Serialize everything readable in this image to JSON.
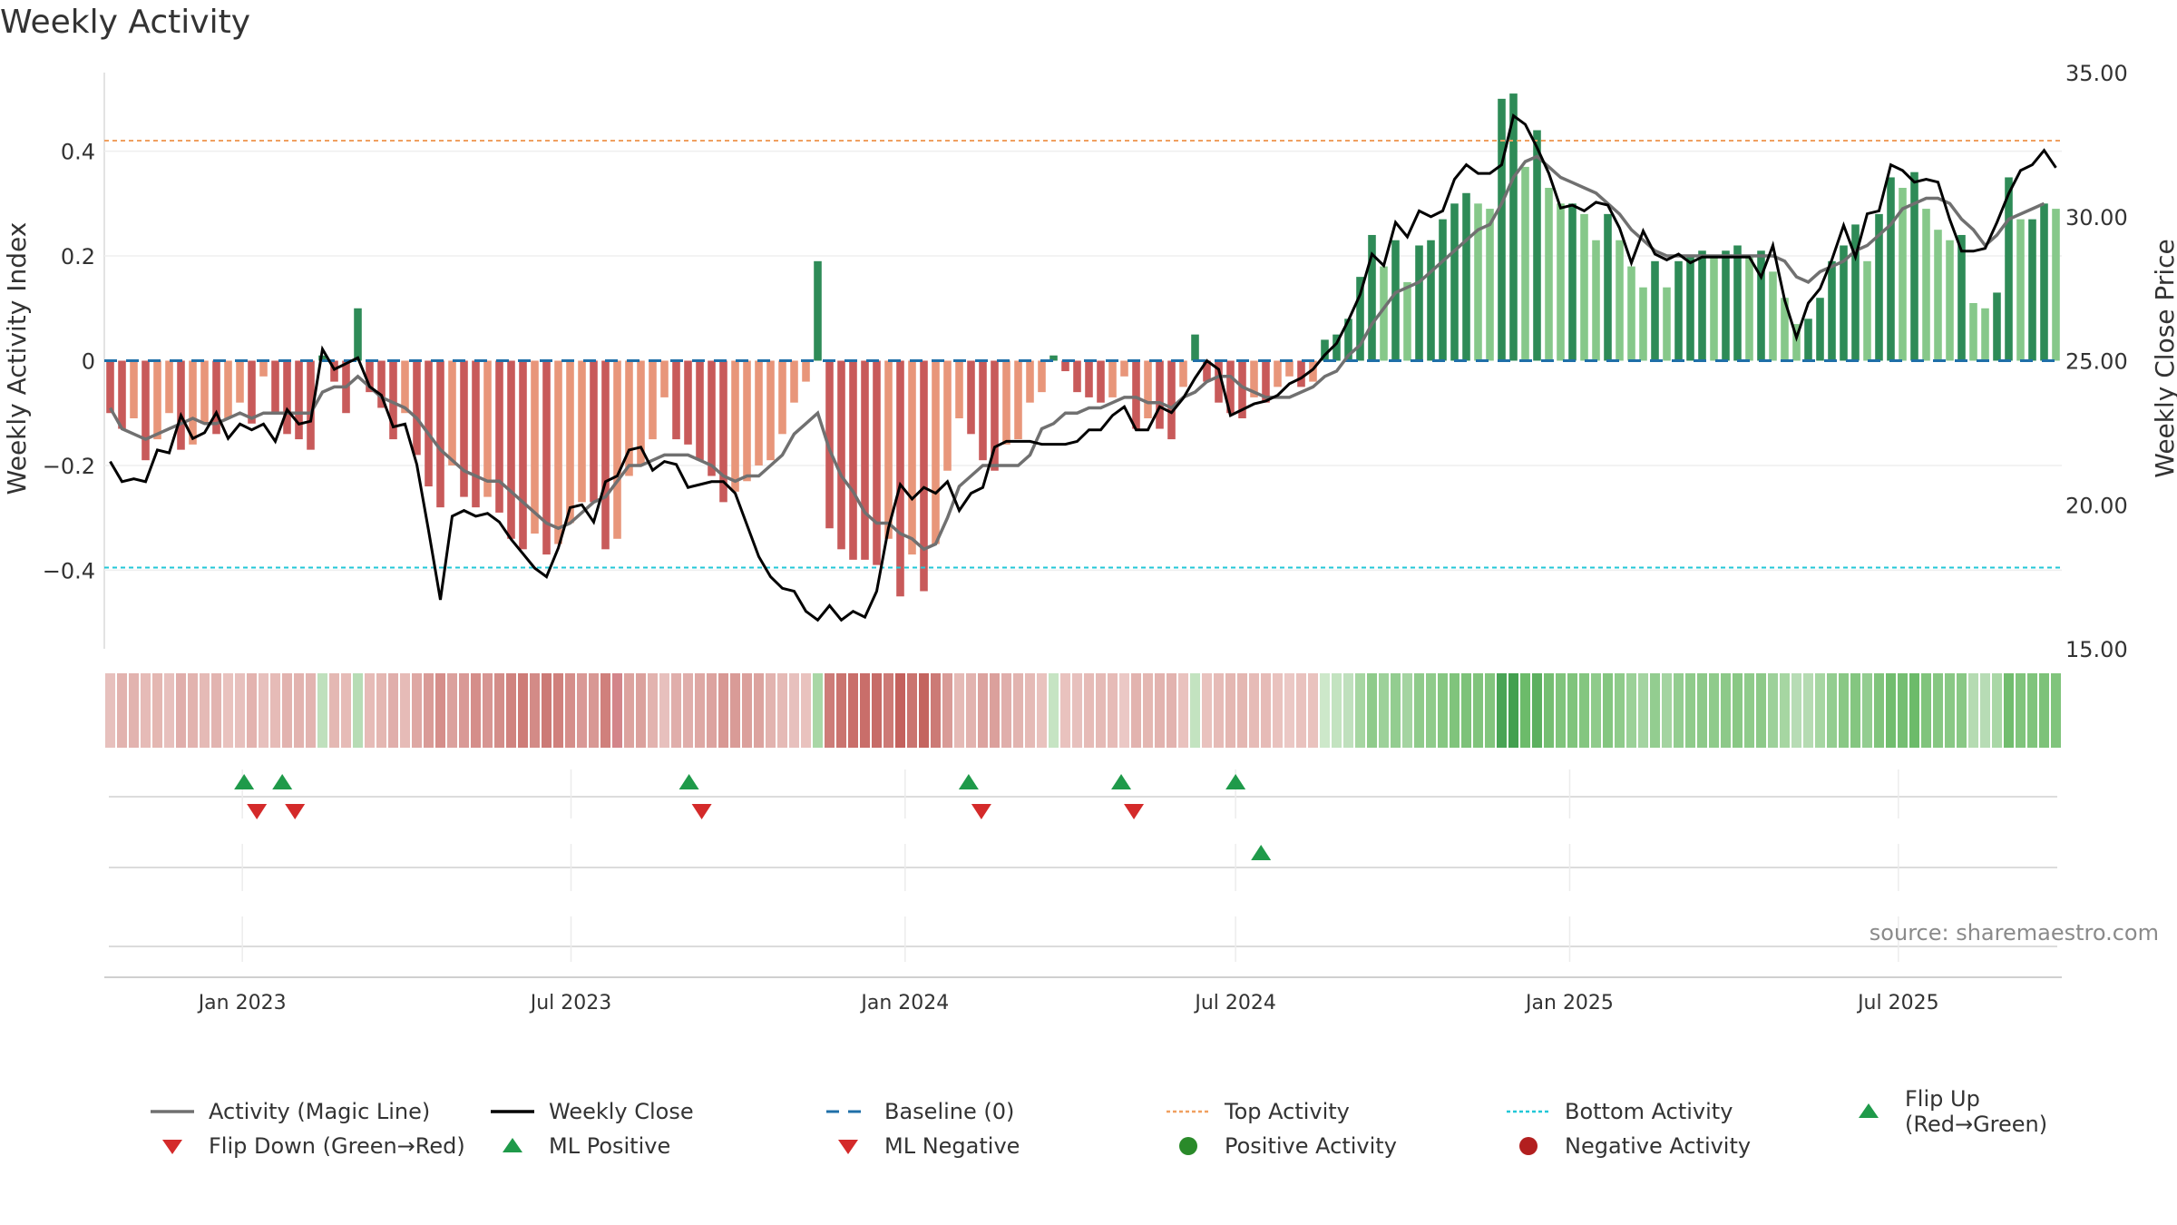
{
  "title": "Weekly Activity",
  "source_note": "source: sharemaestro.com",
  "colors": {
    "magic_line": "#707070",
    "close_line": "#000000",
    "baseline": "#1f6fa8",
    "top_line": "#f0a060",
    "bottom_line": "#22c7d7",
    "green_dark": "#2e8b57",
    "green_light": "#86c88a",
    "red_dark": "#c85a5a",
    "red_light": "#e8967a",
    "flip_up": "#1f9a4a",
    "flip_down": "#d42a2a",
    "pos_dot": "#2a8a2a",
    "neg_dot": "#b21f1f"
  },
  "chart_data": {
    "type": "bar",
    "title": "Weekly Activity",
    "ylabel_left": "Weekly Activity Index",
    "ylabel_right": "Weekly Close Price",
    "yticks_left": [
      "0.4",
      "0.2",
      "0",
      "−0.2",
      "−0.4"
    ],
    "yticks_left_values": [
      0.4,
      0.2,
      0,
      -0.2,
      -0.4
    ],
    "yticks_right": [
      "35.00",
      "30.00",
      "25.00",
      "20.00",
      "15.00"
    ],
    "yticks_right_values": [
      35,
      30,
      25,
      20,
      15
    ],
    "ylim_left": [
      -0.55,
      0.55
    ],
    "ylim_right": [
      15,
      35
    ],
    "x_range": [
      "2022-10-17",
      "2025-09-29"
    ],
    "xticks": [
      {
        "date": "2023-01-01",
        "label": "Jan 2023"
      },
      {
        "date": "2023-07-01",
        "label": "Jul 2023"
      },
      {
        "date": "2024-01-01",
        "label": "Jan 2024"
      },
      {
        "date": "2024-07-01",
        "label": "Jul 2024"
      },
      {
        "date": "2025-01-01",
        "label": "Jan 2025"
      },
      {
        "date": "2025-07-01",
        "label": "Jul 2025"
      }
    ],
    "top_activity": 0.42,
    "bottom_activity": -0.395,
    "activity": [
      -0.1,
      -0.13,
      -0.11,
      -0.19,
      -0.15,
      -0.1,
      -0.17,
      -0.16,
      -0.12,
      -0.14,
      -0.11,
      -0.08,
      -0.12,
      -0.03,
      -0.1,
      -0.14,
      -0.15,
      -0.17,
      0.01,
      -0.04,
      -0.1,
      0.1,
      -0.06,
      -0.09,
      -0.15,
      -0.1,
      -0.18,
      -0.24,
      -0.28,
      -0.2,
      -0.26,
      -0.28,
      -0.26,
      -0.29,
      -0.34,
      -0.36,
      -0.33,
      -0.37,
      -0.35,
      -0.31,
      -0.27,
      -0.27,
      -0.36,
      -0.34,
      -0.22,
      -0.2,
      -0.15,
      -0.07,
      -0.15,
      -0.16,
      -0.19,
      -0.22,
      -0.27,
      -0.25,
      -0.23,
      -0.2,
      -0.19,
      -0.14,
      -0.08,
      -0.04,
      0.19,
      -0.32,
      -0.36,
      -0.38,
      -0.38,
      -0.39,
      -0.34,
      -0.45,
      -0.37,
      -0.44,
      -0.35,
      -0.21,
      -0.11,
      -0.14,
      -0.19,
      -0.21,
      -0.16,
      -0.15,
      -0.08,
      -0.06,
      0.01,
      -0.02,
      -0.06,
      -0.07,
      -0.08,
      -0.07,
      -0.03,
      -0.13,
      -0.11,
      -0.13,
      -0.15,
      -0.05,
      0.05,
      -0.04,
      -0.08,
      -0.1,
      -0.11,
      -0.07,
      -0.08,
      -0.05,
      -0.03,
      -0.05,
      -0.04,
      0.04,
      0.05,
      0.08,
      0.16,
      0.24,
      0.18,
      0.23,
      0.15,
      0.22,
      0.23,
      0.27,
      0.3,
      0.32,
      0.3,
      0.29,
      0.5,
      0.51,
      0.37,
      0.44,
      0.33,
      0.3,
      0.3,
      0.28,
      0.23,
      0.28,
      0.23,
      0.18,
      0.14,
      0.19,
      0.14,
      0.19,
      0.2,
      0.21,
      0.2,
      0.21,
      0.22,
      0.2,
      0.21,
      0.17,
      0.12,
      0.07,
      0.08,
      0.12,
      0.19,
      0.22,
      0.26,
      0.19,
      0.28,
      0.35,
      0.33,
      0.36,
      0.29,
      0.25,
      0.23,
      0.24,
      0.11,
      0.1,
      0.13,
      0.35,
      0.27,
      0.27,
      0.3,
      0.29
    ],
    "magic_line": [
      -0.09,
      -0.13,
      -0.14,
      -0.15,
      -0.14,
      -0.13,
      -0.12,
      -0.11,
      -0.12,
      -0.12,
      -0.11,
      -0.1,
      -0.11,
      -0.1,
      -0.1,
      -0.1,
      -0.1,
      -0.1,
      -0.06,
      -0.05,
      -0.05,
      -0.03,
      -0.05,
      -0.07,
      -0.08,
      -0.09,
      -0.11,
      -0.14,
      -0.17,
      -0.19,
      -0.21,
      -0.22,
      -0.23,
      -0.23,
      -0.25,
      -0.27,
      -0.29,
      -0.31,
      -0.32,
      -0.31,
      -0.29,
      -0.27,
      -0.26,
      -0.23,
      -0.2,
      -0.2,
      -0.19,
      -0.18,
      -0.18,
      -0.18,
      -0.19,
      -0.2,
      -0.22,
      -0.23,
      -0.22,
      -0.22,
      -0.2,
      -0.18,
      -0.14,
      -0.12,
      -0.1,
      -0.17,
      -0.22,
      -0.25,
      -0.29,
      -0.31,
      -0.31,
      -0.33,
      -0.34,
      -0.36,
      -0.35,
      -0.3,
      -0.24,
      -0.22,
      -0.2,
      -0.2,
      -0.2,
      -0.2,
      -0.18,
      -0.13,
      -0.12,
      -0.1,
      -0.1,
      -0.09,
      -0.09,
      -0.08,
      -0.07,
      -0.07,
      -0.08,
      -0.08,
      -0.09,
      -0.07,
      -0.06,
      -0.04,
      -0.03,
      -0.03,
      -0.05,
      -0.06,
      -0.07,
      -0.07,
      -0.07,
      -0.06,
      -0.05,
      -0.03,
      -0.02,
      0.01,
      0.03,
      0.07,
      0.1,
      0.13,
      0.14,
      0.15,
      0.17,
      0.19,
      0.21,
      0.23,
      0.25,
      0.26,
      0.3,
      0.35,
      0.38,
      0.39,
      0.37,
      0.35,
      0.34,
      0.33,
      0.32,
      0.3,
      0.28,
      0.25,
      0.23,
      0.21,
      0.2,
      0.2,
      0.2,
      0.2,
      0.2,
      0.2,
      0.2,
      0.2,
      0.2,
      0.2,
      0.19,
      0.16,
      0.15,
      0.17,
      0.18,
      0.19,
      0.21,
      0.22,
      0.24,
      0.26,
      0.29,
      0.3,
      0.31,
      0.31,
      0.3,
      0.27,
      0.25,
      0.22,
      0.24,
      0.27,
      0.28,
      0.29,
      0.3
    ],
    "weekly_close": [
      21.5,
      20.8,
      20.9,
      20.8,
      21.9,
      21.8,
      23.1,
      22.3,
      22.5,
      23.2,
      22.3,
      22.8,
      22.6,
      22.8,
      22.2,
      23.3,
      22.8,
      22.9,
      25.4,
      24.7,
      24.9,
      25.1,
      24.1,
      23.8,
      22.7,
      22.8,
      21.4,
      19.1,
      16.7,
      19.6,
      19.8,
      19.6,
      19.7,
      19.4,
      18.8,
      18.3,
      17.8,
      17.5,
      18.5,
      19.9,
      20,
      19.4,
      20.8,
      21,
      21.9,
      22,
      21.2,
      21.5,
      21.4,
      20.6,
      20.7,
      20.8,
      20.8,
      20.4,
      19.3,
      18.2,
      17.5,
      17.1,
      17,
      16.3,
      16,
      16.5,
      16,
      16.3,
      16.1,
      17,
      19.2,
      20.7,
      20.2,
      20.6,
      20.4,
      20.8,
      19.8,
      20.4,
      20.6,
      22,
      22.2,
      22.2,
      22.2,
      22.1,
      22.1,
      22.1,
      22.2,
      22.6,
      22.6,
      23.1,
      23.4,
      22.6,
      22.6,
      23.4,
      23.2,
      23.7,
      24.4,
      25,
      24.7,
      23.1,
      23.3,
      23.5,
      23.6,
      23.8,
      24.2,
      24.4,
      24.7,
      25.2,
      25.6,
      26.4,
      27.3,
      28.7,
      28.3,
      29.8,
      29.3,
      30.2,
      30,
      30.2,
      31.3,
      31.8,
      31.5,
      31.5,
      31.8,
      33.5,
      33.2,
      32.4,
      31.5,
      30.3,
      30.4,
      30.2,
      30.5,
      30.4,
      29.6,
      28.4,
      29.5,
      28.7,
      28.5,
      28.7,
      28.4,
      28.6,
      28.6,
      28.6,
      28.6,
      28.6,
      27.9,
      29,
      27.1,
      25.8,
      27,
      27.5,
      28.5,
      29.7,
      28.6,
      30.1,
      30.2,
      31.8,
      31.6,
      31.2,
      31.3,
      31.2,
      29.9,
      28.8,
      28.8,
      28.9,
      29.8,
      30.8,
      31.6,
      31.8,
      32.3,
      31.7
    ],
    "strip_colors": [
      "#e7c0bd",
      "#e2b3af",
      "#e2b3af",
      "#e6bbb7",
      "#e4b7b2",
      "#e7c0bd",
      "#e0aeab",
      "#e2b3af",
      "#e5bab6",
      "#e2b4b0",
      "#e9c2be",
      "#e7c0bd",
      "#e3b3af",
      "#e7c0bd",
      "#e6bbb7",
      "#e2b3af",
      "#e2b3af",
      "#e2b4b0",
      "#bfe0bd",
      "#e4b8b3",
      "#e6bbb7",
      "#b7dcb5",
      "#e6bbb7",
      "#e4b7b2",
      "#e0aeab",
      "#e6bbb7",
      "#dea8a4",
      "#d99b97",
      "#d58e8a",
      "#dba19d",
      "#d99996",
      "#d58e8a",
      "#d79592",
      "#d38d89",
      "#d0837f",
      "#ce7c78",
      "#d38b87",
      "#cc7a76",
      "#d0807c",
      "#d58e8a",
      "#d99996",
      "#d89894",
      "#d0807c",
      "#d3858a",
      "#dca39f",
      "#dba19d",
      "#e2b3af",
      "#e7c0bd",
      "#e0aeab",
      "#e0aeab",
      "#dea8a4",
      "#dca39f",
      "#d89894",
      "#d99b97",
      "#dba09c",
      "#dca39f",
      "#e2b3af",
      "#e5bab6",
      "#e7c0bd",
      "#e9c2be",
      "#a9d7a6",
      "#cd7c78",
      "#ca746f",
      "#c96e6a",
      "#c96e6a",
      "#c76c68",
      "#cd7a76",
      "#c4615d",
      "#ca746f",
      "#c4645f",
      "#cc7a76",
      "#d99b97",
      "#e5bab6",
      "#e2b3af",
      "#dca39f",
      "#dba09c",
      "#e0aeab",
      "#e2b4b0",
      "#e5bab6",
      "#e9c2be",
      "#c6e4c3",
      "#e9c2be",
      "#e7c0bd",
      "#e6bbb7",
      "#e5bab6",
      "#e6bbb7",
      "#ebc8c5",
      "#e2b3af",
      "#e4b7b2",
      "#e2b3af",
      "#e2b3af",
      "#e9c2be",
      "#c3e3c0",
      "#e9c2be",
      "#e6bbb7",
      "#e4b7b2",
      "#e4b7b2",
      "#e6bbb7",
      "#e6bbb7",
      "#e9c2be",
      "#ebc8c5",
      "#e9c2be",
      "#e9c2be",
      "#cde8ca",
      "#c3e3c0",
      "#bfe0bd",
      "#a6d6a2",
      "#8fcb8b",
      "#9dd19a",
      "#93cd90",
      "#a4d4a1",
      "#8fcb8b",
      "#8fcb8b",
      "#86c782",
      "#80c47c",
      "#7dc279",
      "#80c47c",
      "#82c57e",
      "#49a455",
      "#43a04f",
      "#6cbb6a",
      "#5cb05f",
      "#75be72",
      "#80c47c",
      "#80c47c",
      "#84c680",
      "#8fcb8b",
      "#84c680",
      "#8fcb8b",
      "#9bd198",
      "#a4d4a1",
      "#93cd90",
      "#a4d4a1",
      "#93cd90",
      "#8fcb8b",
      "#8dc989",
      "#8fcb8b",
      "#8dc989",
      "#89c885",
      "#8fcb8b",
      "#8dc989",
      "#9dd19a",
      "#a6d6a2",
      "#b7dcb5",
      "#b5dbb2",
      "#a6d6a2",
      "#93cd90",
      "#89c885",
      "#84c680",
      "#93cd90",
      "#80c47c",
      "#71bd6e",
      "#75be72",
      "#6cbb6a",
      "#80c47c",
      "#86c782",
      "#89c885",
      "#89c885",
      "#b5dbb2",
      "#b7dcb5",
      "#a9d7a6",
      "#71bd6e",
      "#80c47c",
      "#80c47c",
      "#7dc279",
      "#80c47c"
    ],
    "flip_up": [
      "2023-01-02",
      "2023-01-23",
      "2023-09-04",
      "2024-02-05",
      "2024-04-29",
      "2024-07-01"
    ],
    "flip_down": [
      "2023-01-09",
      "2023-01-30",
      "2023-09-11",
      "2024-02-12",
      "2024-05-06"
    ],
    "ml_positive": [
      "2024-07-15"
    ],
    "legend": [
      {
        "label": "Activity (Magic Line)",
        "symbol": "line-gray"
      },
      {
        "label": "Weekly Close",
        "symbol": "line-black"
      },
      {
        "label": "Baseline (0)",
        "symbol": "line-dash-blue"
      },
      {
        "label": "Top Activity",
        "symbol": "line-dot-orange"
      },
      {
        "label": "Bottom Activity",
        "symbol": "line-dot-cyan"
      },
      {
        "label": "Flip Up (Red→Green)",
        "symbol": "triangle-up-green"
      },
      {
        "label": "Flip Down (Green→Red)",
        "symbol": "triangle-down-red"
      },
      {
        "label": "ML Positive",
        "symbol": "triangle-up-green"
      },
      {
        "label": "ML Negative",
        "symbol": "triangle-down-red"
      },
      {
        "label": "Positive Activity",
        "symbol": "dot-green"
      },
      {
        "label": "Negative Activity",
        "symbol": "dot-red"
      }
    ]
  }
}
